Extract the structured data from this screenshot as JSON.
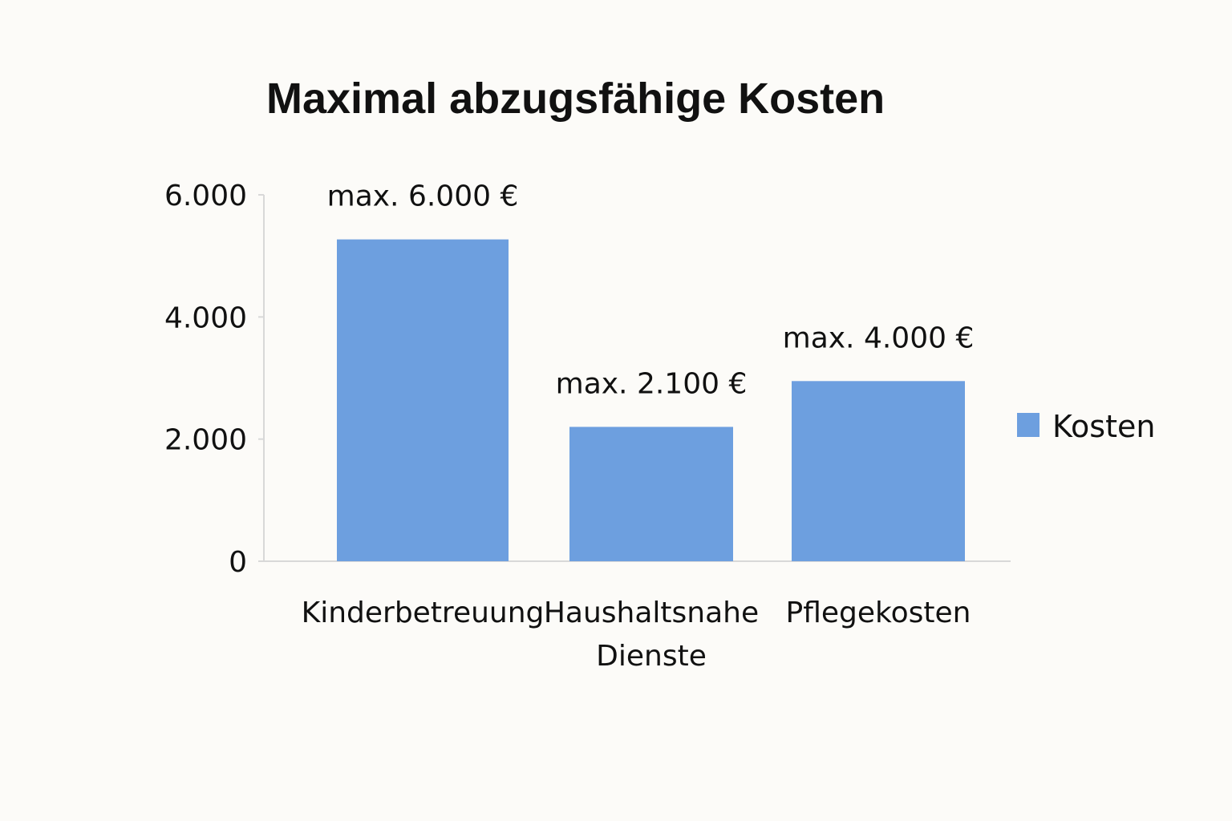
{
  "chart_data": {
    "type": "bar",
    "title": "Maximal abzugsfähige Kosten",
    "xlabel": "",
    "ylabel": "",
    "categories": [
      [
        "Kinderbetreuung"
      ],
      [
        "Haushaltsnahe",
        "Dienste"
      ],
      [
        "Pflegekosten"
      ]
    ],
    "series": [
      {
        "name": "Kosten",
        "color": "#6d9fdf",
        "values": [
          5270,
          2200,
          2950
        ]
      }
    ],
    "data_labels": [
      "max. 6.000 €",
      "max. 2.100 €",
      "max. 4.000 €"
    ],
    "yticks": [
      {
        "value": 0,
        "label": "0"
      },
      {
        "value": 2000,
        "label": "2.000"
      },
      {
        "value": 4000,
        "label": "4.000"
      },
      {
        "value": 6000,
        "label": "6.000"
      }
    ],
    "ylim": [
      0,
      6000
    ],
    "grid": false,
    "legend_position": "right"
  }
}
